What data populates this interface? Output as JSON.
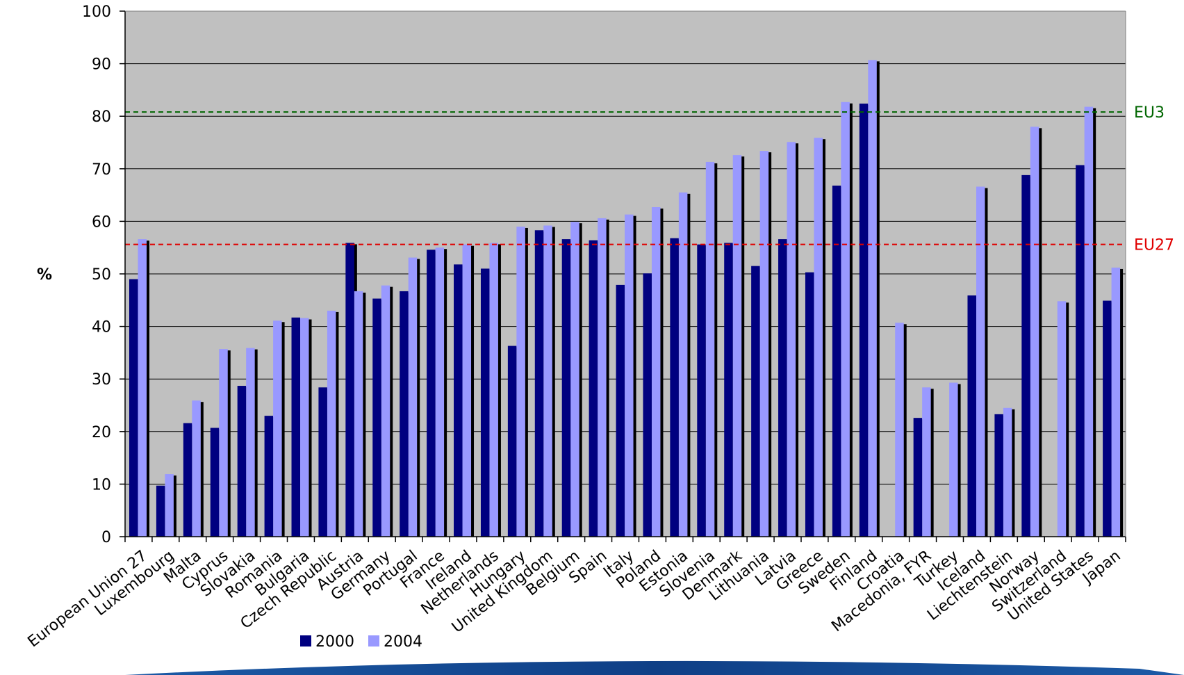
{
  "chart_data": {
    "type": "bar",
    "title": "",
    "ylabel": "%",
    "xlabel": "",
    "ylim": [
      0,
      100
    ],
    "yticks": [
      0,
      10,
      20,
      30,
      40,
      50,
      60,
      70,
      80,
      90,
      100
    ],
    "grid": true,
    "legend_position": "bottom-left",
    "categories": [
      "European Union 27",
      "Luxembourg",
      "Malta",
      "Cyprus",
      "Slovakia",
      "Romania",
      "Bulgaria",
      "Czech Republic",
      "Austria",
      "Germany",
      "Portugal",
      "France",
      "Ireland",
      "Netherlands",
      "Hungary",
      "United Kingdom",
      "Belgium",
      "Spain",
      "Italy",
      "Poland",
      "Estonia",
      "Slovenia",
      "Denmark",
      "Lithuania",
      "Latvia",
      "Greece",
      "Sweden",
      "Finland",
      "Croatia",
      "Macedonia, FYR",
      "Turkey",
      "Iceland",
      "Liechtenstein",
      "Norway",
      "Switzerland",
      "United States",
      "Japan"
    ],
    "series": [
      {
        "name": "2000",
        "color": "#000080",
        "values": [
          49,
          9.7,
          21.6,
          20.7,
          28.7,
          23,
          41.7,
          28.4,
          55.9,
          45.3,
          46.7,
          54.6,
          51.8,
          51,
          36.3,
          58.3,
          56.6,
          56.4,
          47.9,
          50.1,
          56.8,
          55.6,
          55.9,
          51.5,
          56.6,
          50.3,
          66.8,
          82.4,
          null,
          22.6,
          null,
          45.9,
          23.3,
          68.8,
          null,
          70.7,
          44.9
        ]
      },
      {
        "name": "2004",
        "color": "#9999ff",
        "values": [
          56.6,
          11.9,
          25.9,
          35.7,
          35.9,
          41.1,
          41.6,
          43,
          46.7,
          47.8,
          53.1,
          55,
          55.6,
          55.9,
          59,
          59.2,
          59.9,
          60.6,
          61.3,
          62.7,
          65.5,
          71.3,
          72.6,
          73.4,
          75.1,
          75.9,
          82.7,
          90.7,
          40.7,
          28.4,
          29.3,
          66.6,
          24.5,
          78,
          44.8,
          81.8,
          51.2
        ]
      }
    ],
    "reference_lines": [
      {
        "label": "EU3",
        "value": 80.8,
        "color": "#006600"
      },
      {
        "label": "EU27",
        "value": 55.6,
        "color": "#e00000"
      }
    ]
  }
}
